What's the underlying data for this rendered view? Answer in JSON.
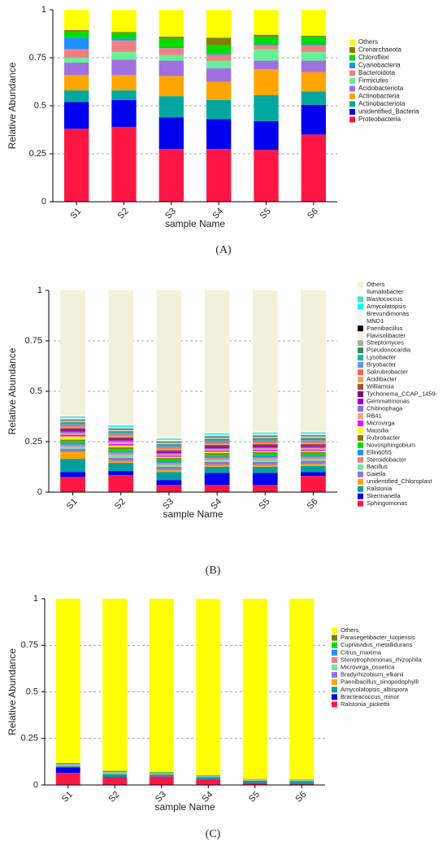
{
  "chart_data": [
    {
      "type": "stacked_bar",
      "panel_label": "(A)",
      "x_label": "sample Name",
      "y_label": "Relative Abundance",
      "categories": [
        "S1",
        "S2",
        "S3",
        "S4",
        "S5",
        "S6"
      ],
      "ylim": [
        0,
        1
      ],
      "yticks": [
        0,
        0.25,
        0.5,
        0.75,
        1
      ],
      "grid": true,
      "series": [
        {
          "name": "Proteobacteria",
          "color": "#ff1744",
          "values": [
            0.38,
            0.39,
            0.275,
            0.275,
            0.27,
            0.35
          ]
        },
        {
          "name": "unidentified_Bacteria",
          "color": "#0000ee",
          "values": [
            0.14,
            0.14,
            0.165,
            0.155,
            0.15,
            0.155
          ]
        },
        {
          "name": "Actinobacteriota",
          "color": "#00a8a0",
          "values": [
            0.06,
            0.05,
            0.11,
            0.1,
            0.135,
            0.07
          ]
        },
        {
          "name": "Actinobacteria",
          "color": "#ffa500",
          "values": [
            0.08,
            0.08,
            0.105,
            0.095,
            0.135,
            0.1
          ]
        },
        {
          "name": "Acidobacteriota",
          "color": "#a070e0",
          "values": [
            0.065,
            0.08,
            0.08,
            0.07,
            0.045,
            0.06
          ]
        },
        {
          "name": "Firmicutes",
          "color": "#66ee99",
          "values": [
            0.025,
            0.04,
            0.03,
            0.04,
            0.06,
            0.045
          ]
        },
        {
          "name": "Bacteroidota",
          "color": "#f08080",
          "values": [
            0.045,
            0.06,
            0.035,
            0.03,
            0.02,
            0.035
          ]
        },
        {
          "name": "Cyanobacteria",
          "color": "#1e90ff",
          "values": [
            0.06,
            0.01,
            0.005,
            0.005,
            0.005,
            0.005
          ]
        },
        {
          "name": "Chloroflexi",
          "color": "#00dd00",
          "values": [
            0.03,
            0.03,
            0.045,
            0.045,
            0.04,
            0.04
          ]
        },
        {
          "name": "Crenarchaeota",
          "color": "#808000",
          "values": [
            0.01,
            0.005,
            0.01,
            0.04,
            0.01,
            0.005
          ]
        },
        {
          "name": "Others",
          "color": "#ffff00",
          "values": [
            0.105,
            0.115,
            0.14,
            0.145,
            0.13,
            0.135
          ]
        }
      ]
    },
    {
      "type": "stacked_bar",
      "panel_label": "(B)",
      "x_label": "sample Name",
      "y_label": "Relative Abundance",
      "categories": [
        "S1",
        "S2",
        "S3",
        "S4",
        "S5",
        "S6"
      ],
      "ylim": [
        0,
        1
      ],
      "yticks": [
        0,
        0.25,
        0.5,
        0.75,
        1
      ],
      "grid": true,
      "series": [
        {
          "name": "Sphingomonas",
          "color": "#ff1744",
          "values": [
            0.075,
            0.085,
            0.035,
            0.035,
            0.035,
            0.08
          ]
        },
        {
          "name": "Skermanella",
          "color": "#0000ee",
          "values": [
            0.025,
            0.02,
            0.025,
            0.06,
            0.06,
            0.02
          ]
        },
        {
          "name": "Ralstonia",
          "color": "#00a0a0",
          "values": [
            0.065,
            0.04,
            0.04,
            0.03,
            0.03,
            0.03
          ]
        },
        {
          "name": "unidentified_Chloroplast",
          "color": "#ffa500",
          "values": [
            0.035,
            0.01,
            0.01,
            0.01,
            0.01,
            0.01
          ]
        },
        {
          "name": "Gaiella",
          "color": "#9370db",
          "values": [
            0.015,
            0.015,
            0.015,
            0.015,
            0.015,
            0.015
          ]
        },
        {
          "name": "Bacillus",
          "color": "#66ee99",
          "values": [
            0.01,
            0.015,
            0.01,
            0.01,
            0.012,
            0.01
          ]
        },
        {
          "name": "Steroidobacter",
          "color": "#f08080",
          "values": [
            0.01,
            0.01,
            0.01,
            0.01,
            0.01,
            0.01
          ]
        },
        {
          "name": "Ellin6055",
          "color": "#1e90ff",
          "values": [
            0.01,
            0.008,
            0.008,
            0.008,
            0.01,
            0.008
          ]
        },
        {
          "name": "Novosphingobium",
          "color": "#00dd00",
          "values": [
            0.008,
            0.01,
            0.008,
            0.008,
            0.008,
            0.008
          ]
        },
        {
          "name": "Rubrobacter",
          "color": "#808000",
          "values": [
            0.008,
            0.01,
            0.008,
            0.008,
            0.008,
            0.008
          ]
        },
        {
          "name": "Massilia",
          "color": "#ffff00",
          "values": [
            0.015,
            0.008,
            0.006,
            0.006,
            0.006,
            0.006
          ]
        },
        {
          "name": "Microvirga",
          "color": "#ff00ff",
          "values": [
            0.008,
            0.008,
            0.006,
            0.006,
            0.006,
            0.006
          ]
        },
        {
          "name": "RB41",
          "color": "#ffa07a",
          "values": [
            0.008,
            0.008,
            0.006,
            0.006,
            0.006,
            0.006
          ]
        },
        {
          "name": "Chitinophaga",
          "color": "#8a6fdf",
          "values": [
            0.008,
            0.008,
            0.006,
            0.006,
            0.006,
            0.006
          ]
        },
        {
          "name": "Gemmatimonas",
          "color": "#9900cc",
          "values": [
            0.006,
            0.006,
            0.006,
            0.006,
            0.006,
            0.006
          ]
        },
        {
          "name": "Tychonema_CCAP_1459-",
          "color": "#800080",
          "values": [
            0.006,
            0.006,
            0.004,
            0.004,
            0.004,
            0.004
          ]
        },
        {
          "name": "Williamsia",
          "color": "#a0522d",
          "values": [
            0.006,
            0.006,
            0.006,
            0.006,
            0.006,
            0.006
          ]
        },
        {
          "name": "Acidibacter",
          "color": "#f4a460",
          "values": [
            0.006,
            0.006,
            0.006,
            0.006,
            0.006,
            0.006
          ]
        },
        {
          "name": "Solirubrobacter",
          "color": "#ff6347",
          "values": [
            0.006,
            0.006,
            0.006,
            0.006,
            0.006,
            0.006
          ]
        },
        {
          "name": "Bryobacter",
          "color": "#6495ed",
          "values": [
            0.006,
            0.006,
            0.006,
            0.006,
            0.006,
            0.006
          ]
        },
        {
          "name": "Lysobacter",
          "color": "#20b2aa",
          "values": [
            0.005,
            0.005,
            0.005,
            0.005,
            0.005,
            0.005
          ]
        },
        {
          "name": "Pseudonocardia",
          "color": "#2e8b57",
          "values": [
            0.005,
            0.005,
            0.005,
            0.005,
            0.005,
            0.005
          ]
        },
        {
          "name": "Streptomyces",
          "color": "#aaaaaa",
          "values": [
            0.006,
            0.006,
            0.006,
            0.006,
            0.006,
            0.006
          ]
        },
        {
          "name": "Flavisolibacter",
          "color": "#f5f5dc",
          "values": [
            0.004,
            0.004,
            0.004,
            0.004,
            0.004,
            0.004
          ]
        },
        {
          "name": "Paenibacillus",
          "color": "#000000",
          "values": [
            0.004,
            0.004,
            0.004,
            0.004,
            0.004,
            0.004
          ]
        },
        {
          "name": "MND1",
          "color": "#e0ffff",
          "values": [
            0.004,
            0.004,
            0.004,
            0.004,
            0.004,
            0.004
          ]
        },
        {
          "name": "Brevundimonas",
          "color": "#f0f8ff",
          "values": [
            0.004,
            0.004,
            0.004,
            0.004,
            0.004,
            0.004
          ]
        },
        {
          "name": "Amycolatopsis",
          "color": "#00ffff",
          "values": [
            0.004,
            0.004,
            0.004,
            0.004,
            0.004,
            0.004
          ]
        },
        {
          "name": "Blastococcus",
          "color": "#40e0d0",
          "values": [
            0.004,
            0.004,
            0.004,
            0.004,
            0.004,
            0.004
          ]
        },
        {
          "name": "Ilumatobacter",
          "color": "#fffff0",
          "values": [
            0.004,
            0.004,
            0.004,
            0.004,
            0.004,
            0.004
          ]
        },
        {
          "name": "Others",
          "color": "#f2f2dc",
          "values": [
            0.62,
            0.665,
            0.729,
            0.704,
            0.7,
            0.699
          ]
        }
      ]
    },
    {
      "type": "stacked_bar",
      "panel_label": "(C)",
      "x_label": "sample Name",
      "y_label": "Relative Abundance",
      "categories": [
        "S1",
        "S2",
        "S3",
        "S4",
        "S5",
        "S6"
      ],
      "ylim": [
        0,
        1
      ],
      "yticks": [
        0,
        0.25,
        0.5,
        0.75,
        1
      ],
      "grid": true,
      "series": [
        {
          "name": "Ralstonia_pickettii",
          "color": "#ff1744",
          "values": [
            0.065,
            0.04,
            0.045,
            0.03,
            0.01,
            0.005
          ]
        },
        {
          "name": "Bracteacoccus_minor",
          "color": "#0000ee",
          "values": [
            0.03,
            0.003,
            0.002,
            0.002,
            0.001,
            0.001
          ]
        },
        {
          "name": "Amycolatopsis_albispora",
          "color": "#00a0a0",
          "values": [
            0.005,
            0.015,
            0.008,
            0.01,
            0.012,
            0.015
          ]
        },
        {
          "name": "Paenibacillus_sinopodophylli",
          "color": "#ffa500",
          "values": [
            0.003,
            0.002,
            0.002,
            0.002,
            0.002,
            0.002
          ]
        },
        {
          "name": "Bradyrhizobium_elkanii",
          "color": "#9370db",
          "values": [
            0.003,
            0.003,
            0.002,
            0.002,
            0.002,
            0.002
          ]
        },
        {
          "name": "Microvirga_ossetica",
          "color": "#66ee99",
          "values": [
            0.003,
            0.005,
            0.003,
            0.002,
            0.002,
            0.002
          ]
        },
        {
          "name": "Stenotrophomonas_rhizophila",
          "color": "#f08080",
          "values": [
            0.003,
            0.002,
            0.002,
            0.001,
            0.001,
            0.001
          ]
        },
        {
          "name": "Citrus_maxima",
          "color": "#1e90ff",
          "values": [
            0.002,
            0.002,
            0.002,
            0.001,
            0.001,
            0.001
          ]
        },
        {
          "name": "Cupriavidus_metallidurans",
          "color": "#00dd00",
          "values": [
            0.002,
            0.003,
            0.002,
            0.002,
            0.001,
            0.001
          ]
        },
        {
          "name": "Parasegetibacter_luojiensis",
          "color": "#808000",
          "values": [
            0.002,
            0.002,
            0.002,
            0.001,
            0.001,
            0.001
          ]
        },
        {
          "name": "Others",
          "color": "#ffff00",
          "values": [
            0.882,
            0.923,
            0.93,
            0.947,
            0.967,
            0.969
          ]
        }
      ]
    }
  ]
}
